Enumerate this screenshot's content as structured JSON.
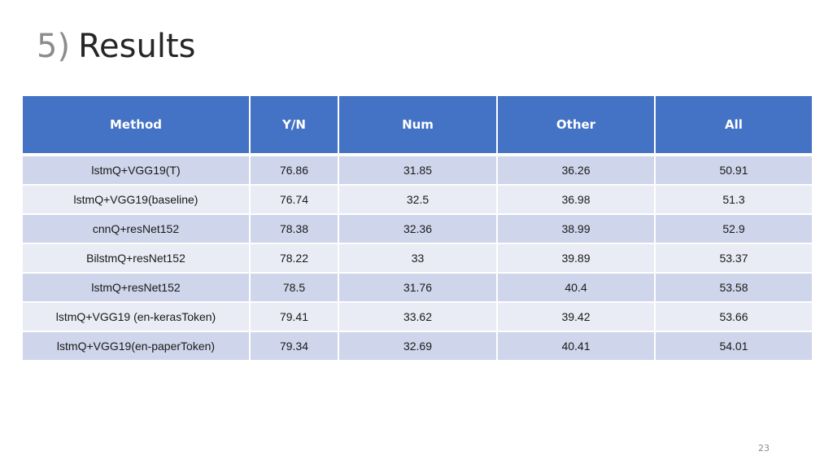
{
  "slide": {
    "title_number": "5)",
    "title_text": "Results",
    "page_number": "23"
  },
  "table": {
    "headers": [
      "Method",
      "Y/N",
      "Num",
      "Other",
      "All"
    ],
    "rows": [
      [
        "lstmQ+VGG19(T)",
        "76.86",
        "31.85",
        "36.26",
        "50.91"
      ],
      [
        "lstmQ+VGG19(baseline)",
        "76.74",
        "32.5",
        "36.98",
        "51.3"
      ],
      [
        "cnnQ+resNet152",
        "78.38",
        "32.36",
        "38.99",
        "52.9"
      ],
      [
        "BilstmQ+resNet152",
        "78.22",
        "33",
        "39.89",
        "53.37"
      ],
      [
        "lstmQ+resNet152",
        "78.5",
        "31.76",
        "40.4",
        "53.58"
      ],
      [
        "lstmQ+VGG19 (en-kerasToken)",
        "79.41",
        "33.62",
        "39.42",
        "53.66"
      ],
      [
        "lstmQ+VGG19(en-paperToken)",
        "79.34",
        "32.69",
        "40.41",
        "54.01"
      ]
    ]
  },
  "colors": {
    "header_background": "#4472c4",
    "row_band_dark": "#cfd5ea",
    "row_band_light": "#e9ebf5",
    "title_number": "#8c8c8c"
  }
}
